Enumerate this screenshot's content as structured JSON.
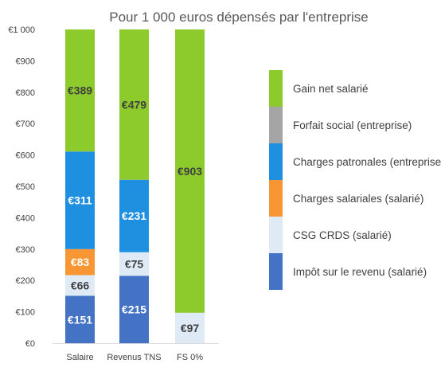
{
  "chart_data": {
    "type": "bar",
    "stacked": true,
    "title": "Pour 1 000 euros dépensés par l'entreprise",
    "xlabel": "",
    "ylabel": "",
    "ylim": [
      0,
      1000
    ],
    "yticks": [
      "€0",
      "€100",
      "€200",
      "€300",
      "€400",
      "€500",
      "€600",
      "€700",
      "€800",
      "€900",
      "€1 000"
    ],
    "categories": [
      "Salaire",
      "Revenus TNS",
      "FS 0%"
    ],
    "legend_position": "right",
    "grid": false,
    "series": [
      {
        "name": "Impôt sur le revenu (salarié)",
        "color": "#4472C4",
        "label_color": "#ffffff",
        "values": [
          151,
          215,
          0
        ],
        "labels": [
          "€151",
          "€215",
          ""
        ]
      },
      {
        "name": "CSG CRDS (salarié)",
        "color": "#DEEBF7",
        "label_color": "#404040",
        "values": [
          66,
          75,
          97
        ],
        "labels": [
          "€66",
          "€75",
          "€97"
        ]
      },
      {
        "name": "Charges salariales (salarié)",
        "color": "#F79633",
        "label_color": "#ffffff",
        "values": [
          83,
          0,
          0
        ],
        "labels": [
          "€83",
          "",
          ""
        ]
      },
      {
        "name": "Charges patronales (entreprise)",
        "color": "#1F8FE0",
        "label_color": "#ffffff",
        "values": [
          311,
          231,
          0
        ],
        "labels": [
          "€311",
          "€231",
          ""
        ]
      },
      {
        "name": "Forfait social (entreprise)",
        "color": "#A5A5A5",
        "label_color": "#404040",
        "values": [
          0,
          0,
          0
        ],
        "labels": [
          "",
          "",
          ""
        ]
      },
      {
        "name": "Gain net salarié",
        "color": "#8DCB2C",
        "label_color": "#404040",
        "values": [
          389,
          479,
          903
        ],
        "labels": [
          "€389",
          "€479",
          "€903"
        ]
      }
    ]
  }
}
